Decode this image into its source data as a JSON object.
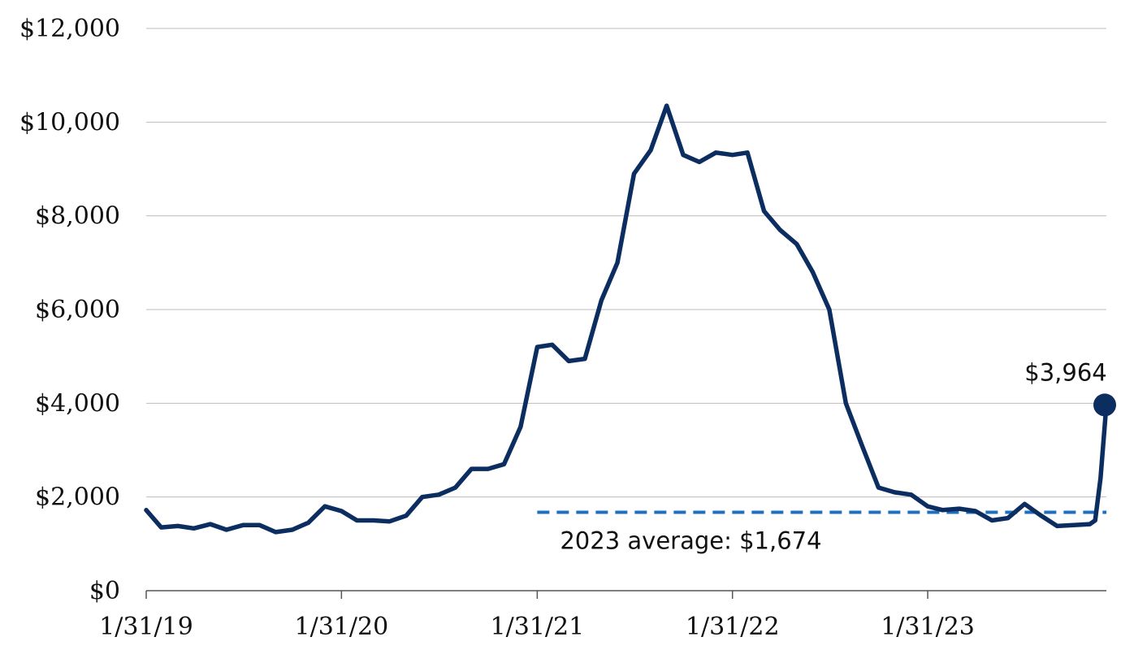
{
  "chart_data": {
    "type": "line",
    "title": "",
    "xlabel": "",
    "ylabel": "",
    "ylim": [
      0,
      12000
    ],
    "xlim": [
      "2019-01-31",
      "2023-12-31"
    ],
    "y_ticks": [
      0,
      2000,
      4000,
      6000,
      8000,
      10000,
      12000
    ],
    "y_tick_labels": [
      "$0",
      "$2,000",
      "$4,000",
      "$6,000",
      "$8,000",
      "$10,000",
      "$12,000"
    ],
    "x_ticks": [
      "2019-01-31",
      "2020-01-31",
      "2021-01-31",
      "2022-01-31",
      "2023-01-31"
    ],
    "x_tick_labels": [
      "1/31/19",
      "1/31/20",
      "1/31/21",
      "1/31/22",
      "1/31/23"
    ],
    "grid": true,
    "colors": {
      "series": "#0b2d60",
      "average_line": "#1f6fc0"
    },
    "series": [
      {
        "x": [
          "2019-01-31",
          "2019-02-28",
          "2019-03-31",
          "2019-04-30",
          "2019-05-31",
          "2019-06-30",
          "2019-07-31",
          "2019-08-31",
          "2019-09-30",
          "2019-10-31",
          "2019-11-30",
          "2019-12-31",
          "2020-01-31",
          "2020-02-29",
          "2020-03-31",
          "2020-04-30",
          "2020-05-31",
          "2020-06-30",
          "2020-07-31",
          "2020-08-31",
          "2020-09-30",
          "2020-10-31",
          "2020-11-30",
          "2020-12-31",
          "2021-01-31",
          "2021-02-28",
          "2021-03-31",
          "2021-04-30",
          "2021-05-31",
          "2021-06-30",
          "2021-07-31",
          "2021-08-31",
          "2021-09-30",
          "2021-10-31",
          "2021-11-30",
          "2021-12-31",
          "2022-01-31",
          "2022-02-28",
          "2022-03-31",
          "2022-04-30",
          "2022-05-31",
          "2022-06-30",
          "2022-07-31",
          "2022-08-31",
          "2022-09-30",
          "2022-10-31",
          "2022-11-30",
          "2022-12-31",
          "2023-01-31",
          "2023-02-28",
          "2023-03-31",
          "2023-04-30",
          "2023-05-31",
          "2023-06-30",
          "2023-07-31",
          "2023-08-31",
          "2023-09-30",
          "2023-10-31",
          "2023-11-30",
          "2023-12-10",
          "2023-12-20",
          "2023-12-31"
        ],
        "values": [
          1720,
          1350,
          1380,
          1330,
          1420,
          1300,
          1400,
          1400,
          1250,
          1300,
          1450,
          1800,
          1700,
          1500,
          1500,
          1480,
          1600,
          2000,
          2050,
          2200,
          2600,
          2600,
          2700,
          3500,
          5200,
          5250,
          4900,
          4950,
          6200,
          7000,
          8900,
          9400,
          10350,
          9300,
          9150,
          9350,
          9300,
          9350,
          8100,
          7700,
          7400,
          6800,
          6000,
          4000,
          3100,
          2200,
          2100,
          2050,
          1800,
          1720,
          1750,
          1700,
          1500,
          1550,
          1850,
          1600,
          1380,
          1400,
          1420,
          1500,
          2400,
          3964
        ],
        "end_marker": true
      }
    ],
    "annotations": [
      {
        "text": "$3,964",
        "target": "last_point"
      },
      {
        "text": "2023 average: $1,674",
        "target": "average_line"
      }
    ],
    "reference_lines": [
      {
        "value": 1674,
        "from": "2021-01-31",
        "to": "2023-12-31",
        "style": "dashed",
        "label": "2023 average: $1,674"
      }
    ]
  }
}
